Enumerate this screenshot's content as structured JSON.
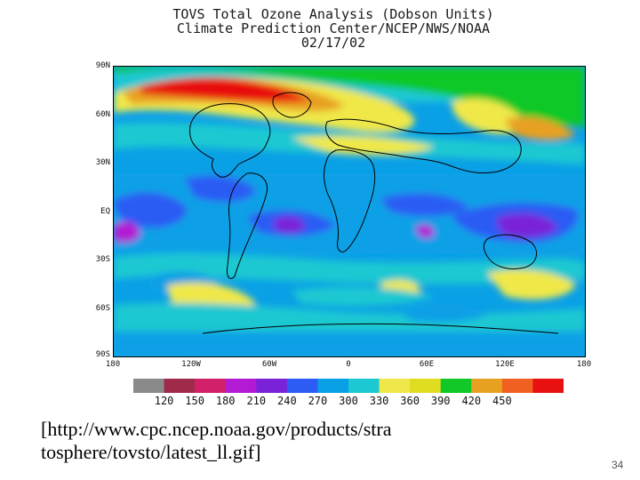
{
  "map": {
    "title_line1": "TOVS Total Ozone Analysis (Dobson Units)",
    "title_line2": "Climate Prediction Center/NCEP/NWS/NOAA",
    "date": "02/17/02",
    "lat_labels": [
      "90N",
      "60N",
      "30N",
      "EQ",
      "30S",
      "60S",
      "90S"
    ],
    "lon_labels": [
      "180",
      "120W",
      "60W",
      "0",
      "60E",
      "120E",
      "180"
    ]
  },
  "colorbar": {
    "labels": [
      "120",
      "150",
      "180",
      "210",
      "240",
      "270",
      "300",
      "330",
      "360",
      "390",
      "420",
      "450"
    ],
    "colors": [
      "#8a8a8a",
      "#a02a4a",
      "#d0206a",
      "#b21ad4",
      "#7a22d8",
      "#2c5cf4",
      "#0aa0e6",
      "#1cc8d2",
      "#f0e84a",
      "#e0dc20",
      "#10c828",
      "#e8a020",
      "#f06020",
      "#e81010"
    ]
  },
  "caption": {
    "line1": "[http://www.cpc.ncep.noaa.gov/products/stra",
    "line2": "tosphere/tovsto/latest_ll.gif]"
  },
  "page_number": "34"
}
